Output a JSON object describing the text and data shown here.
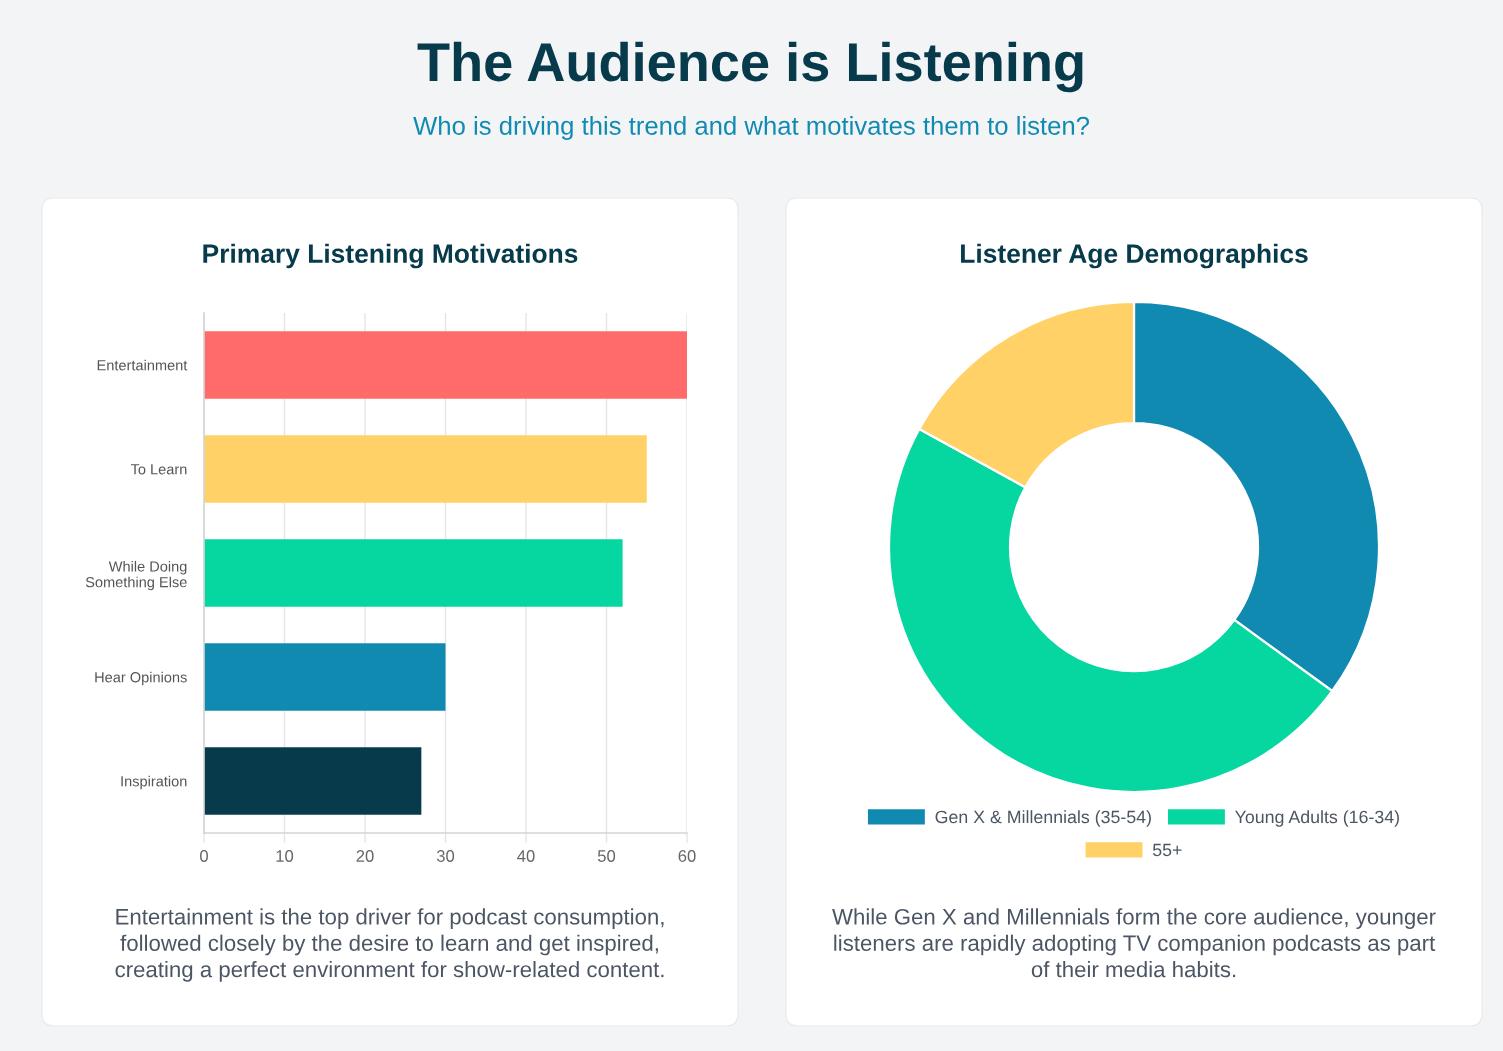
{
  "chart_data": [
    {
      "type": "other",
      "title": "The Audience is Listening",
      "subtitle": "Who is driving this trend and what motivates them to listen?"
    },
    {
      "type": "bar",
      "orientation": "horizontal",
      "title": "Primary Listening Motivations",
      "categories": [
        "Entertainment",
        "To Learn",
        "While Doing Something Else",
        "Hear Opinions",
        "Inspiration"
      ],
      "values": [
        60,
        55,
        52,
        30,
        27
      ],
      "colors": [
        "#ff6b6b",
        "#ffd166",
        "#06d6a0",
        "#118ab2",
        "#073b4c"
      ],
      "xlim": [
        0,
        60
      ],
      "xticks": [
        0,
        10,
        20,
        30,
        40,
        50,
        60
      ],
      "grid": "x",
      "annotations": [
        "Entertainment is the top driver for podcast consumption,\nfollowed closely by the desire to learn and get inspired,\ncreating a perfect environment for show-related content."
      ]
    },
    {
      "type": "donut",
      "title": "Listener Age Demographics",
      "categories": [
        "Gen X & Millennials (35-54)",
        "Young Adults (16-34)",
        "55+"
      ],
      "values": [
        35,
        48,
        17
      ],
      "colors": [
        "#118ab2",
        "#06d6a0",
        "#ffd166"
      ],
      "legend": "bottom",
      "annotations": [
        "While Gen X and Millennials form the core audience, younger\nlisteners are rapidly adopting TV companion podcasts as part\nof their media habits."
      ]
    }
  ]
}
